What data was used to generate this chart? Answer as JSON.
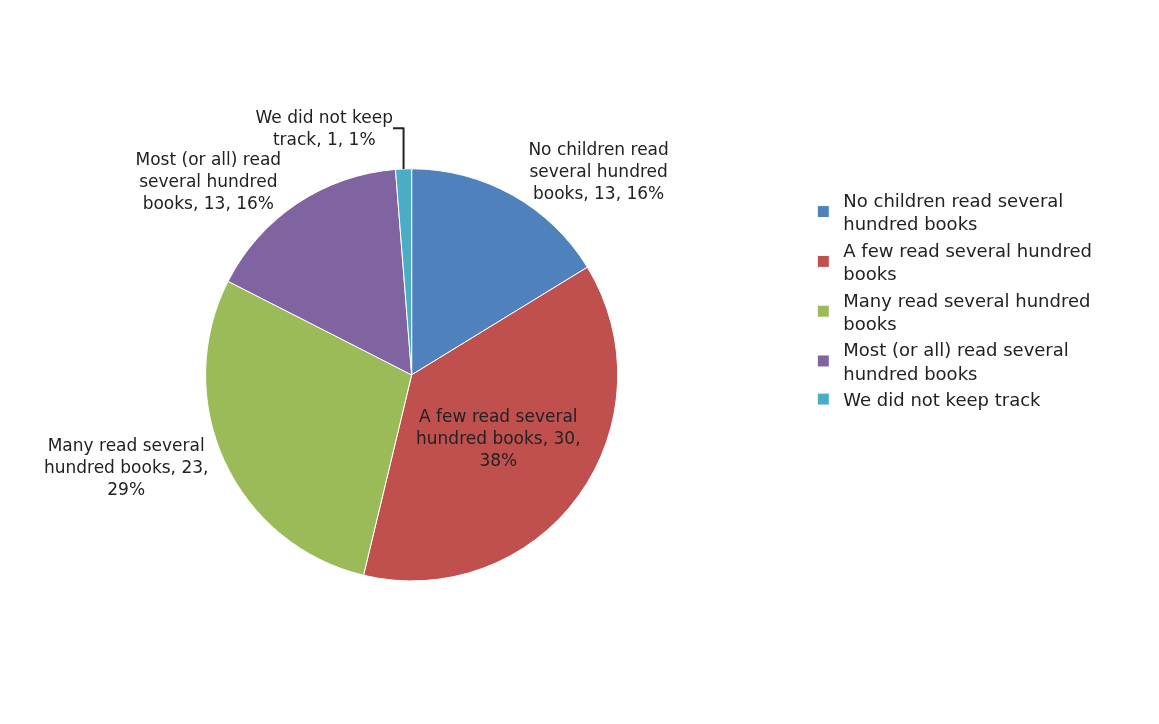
{
  "chart_data": {
    "type": "pie",
    "categories": [
      "No children read several hundred books",
      "A few read several hundred books",
      "Many read several hundred books",
      "Most (or all) read several hundred books",
      "We did not keep track"
    ],
    "values": [
      13,
      30,
      23,
      13,
      1
    ],
    "colors": [
      "#4f81bd",
      "#c0504d",
      "#9bbb59",
      "#8064a2",
      "#4bacc6"
    ],
    "value_labels": [
      "No children read several hundred books, 13, 16%",
      "A few read several hundred books, 30, 38%",
      "Many read several hundred books, 23, 29%",
      "Most (or all) read several hundred books, 13, 16%",
      "We did not keep track, 1, 1%"
    ],
    "legend": "right"
  }
}
